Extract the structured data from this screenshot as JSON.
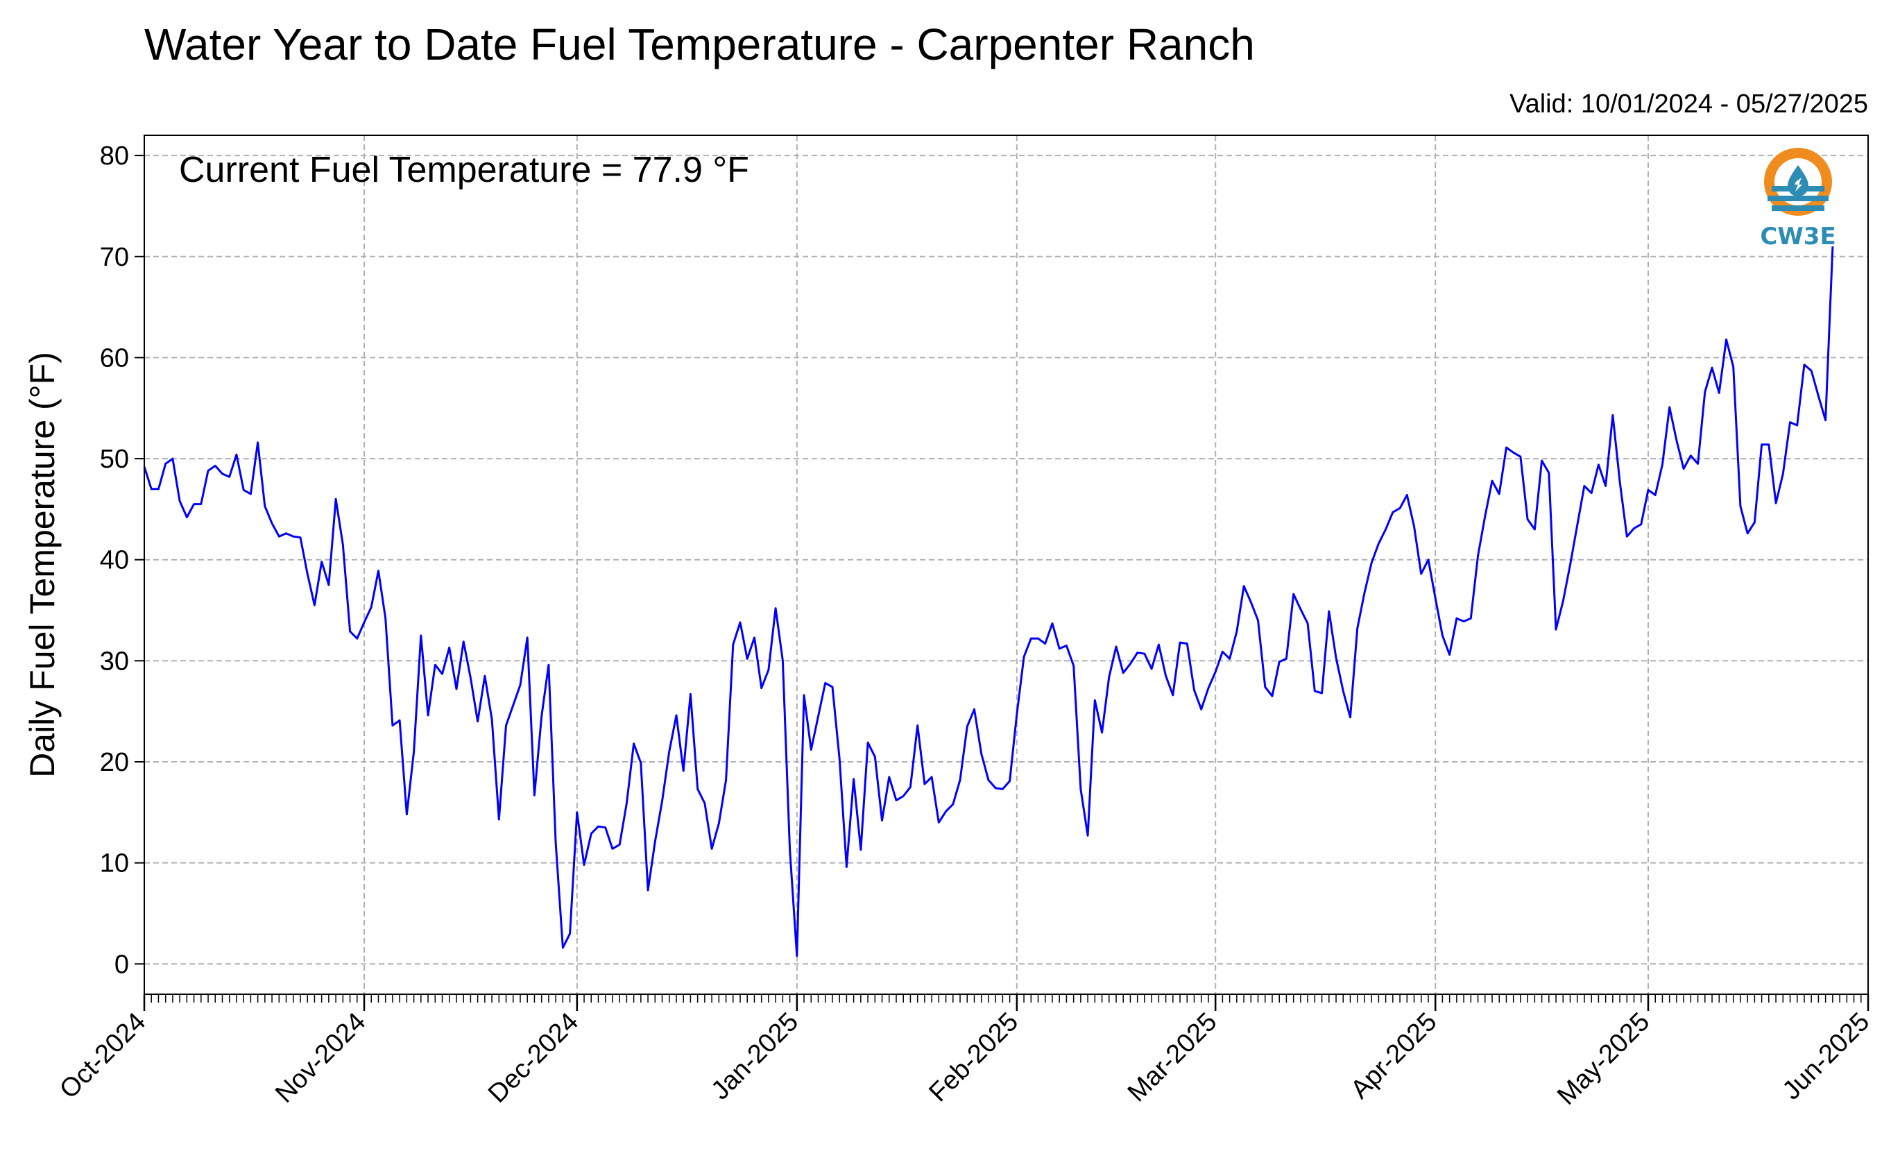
{
  "chart_data": {
    "type": "line",
    "title": "Water Year to Date Fuel Temperature - Carpenter Ranch",
    "subtitle": "Valid: 10/01/2024 - 05/27/2025",
    "annotation": "Current Fuel Temperature = 77.9 °F",
    "ylabel": "Daily Fuel Temperature (°F)",
    "xlabel": "",
    "ylim": [
      -3,
      82
    ],
    "xlim": [
      "2024-10-01",
      "2025-06-01"
    ],
    "yticks": [
      0,
      10,
      20,
      30,
      40,
      50,
      60,
      70,
      80
    ],
    "x_ticks": [
      {
        "date": "2024-10-01",
        "label": "Oct-2024"
      },
      {
        "date": "2024-11-01",
        "label": "Nov-2024"
      },
      {
        "date": "2024-12-01",
        "label": "Dec-2024"
      },
      {
        "date": "2025-01-01",
        "label": "Jan-2025"
      },
      {
        "date": "2025-02-01",
        "label": "Feb-2025"
      },
      {
        "date": "2025-03-01",
        "label": "Mar-2025"
      },
      {
        "date": "2025-04-01",
        "label": "Apr-2025"
      },
      {
        "date": "2025-05-01",
        "label": "May-2025"
      },
      {
        "date": "2025-06-01",
        "label": "Jun-2025"
      }
    ],
    "grid": true,
    "line_color": "#0000ff",
    "start_date": "2024-10-01",
    "daily_values": [
      49.2,
      47.0,
      47.0,
      49.5,
      50.0,
      45.8,
      44.2,
      45.5,
      45.5,
      48.8,
      49.3,
      48.5,
      48.2,
      50.4,
      46.9,
      46.5,
      51.6,
      45.3,
      43.6,
      42.3,
      42.6,
      42.3,
      42.2,
      38.6,
      35.5,
      39.8,
      37.5,
      46.0,
      41.5,
      32.9,
      32.2,
      33.8,
      35.3,
      38.9,
      34.2,
      23.6,
      24.1,
      14.8,
      21.0,
      32.5,
      24.6,
      29.6,
      28.7,
      31.3,
      27.2,
      31.9,
      28.3,
      24.0,
      28.5,
      24.2,
      14.3,
      23.6,
      25.6,
      27.6,
      32.3,
      16.7,
      24.5,
      29.6,
      12.0,
      1.6,
      3.0,
      15.0,
      9.8,
      12.9,
      13.6,
      13.5,
      11.4,
      11.8,
      15.9,
      21.8,
      19.9,
      7.3,
      12.1,
      16.1,
      21.0,
      24.6,
      19.1,
      26.7,
      17.3,
      15.9,
      11.4,
      13.9,
      18.2,
      31.6,
      33.8,
      30.2,
      32.3,
      27.3,
      29.1,
      35.2,
      30.0,
      11.3,
      0.8,
      26.6,
      21.2,
      24.5,
      27.8,
      27.4,
      20.3,
      9.6,
      18.3,
      11.3,
      21.9,
      20.5,
      14.2,
      18.5,
      16.2,
      16.6,
      17.5,
      23.6,
      17.8,
      18.5,
      14.0,
      15.1,
      15.8,
      18.2,
      23.5,
      25.2,
      20.8,
      18.2,
      17.4,
      17.3,
      18.1,
      24.7,
      30.4,
      32.2,
      32.2,
      31.7,
      33.7,
      31.2,
      31.5,
      29.5,
      17.3,
      12.7,
      26.1,
      22.9,
      28.4,
      31.4,
      28.8,
      29.7,
      30.8,
      30.7,
      29.2,
      31.6,
      28.5,
      26.6,
      31.8,
      31.7,
      27.1,
      25.2,
      27.3,
      28.9,
      30.9,
      30.2,
      32.9,
      37.4,
      35.8,
      34.0,
      27.4,
      26.5,
      29.9,
      30.2,
      36.6,
      35.1,
      33.7,
      27.0,
      26.8,
      34.9,
      30.3,
      27.0,
      24.4,
      33.2,
      36.7,
      39.7,
      41.6,
      43.0,
      44.7,
      45.1,
      46.4,
      43.3,
      38.6,
      40.0,
      36.2,
      32.5,
      30.6,
      34.2,
      33.9,
      34.2,
      40.4,
      44.3,
      47.8,
      46.5,
      51.1,
      50.6,
      50.2,
      44.0,
      43.0,
      49.8,
      48.6,
      33.1,
      35.9,
      39.5,
      43.4,
      47.3,
      46.6,
      49.4,
      47.3,
      54.3,
      47.7,
      42.3,
      43.1,
      43.5,
      46.9,
      46.4,
      49.4,
      55.1,
      51.8,
      49.0,
      50.3,
      49.5,
      56.6,
      59.0,
      56.5,
      61.8,
      59.1,
      45.3,
      42.6,
      43.7,
      51.4,
      51.4,
      45.6,
      48.5,
      53.6,
      53.3,
      59.3,
      58.7,
      56.2,
      53.8,
      71.0
    ]
  },
  "logo": {
    "text": "CW3E",
    "colors": {
      "ring": "#f08c1e",
      "water": "#2d8cb4",
      "drop": "#2d8cb4"
    }
  }
}
